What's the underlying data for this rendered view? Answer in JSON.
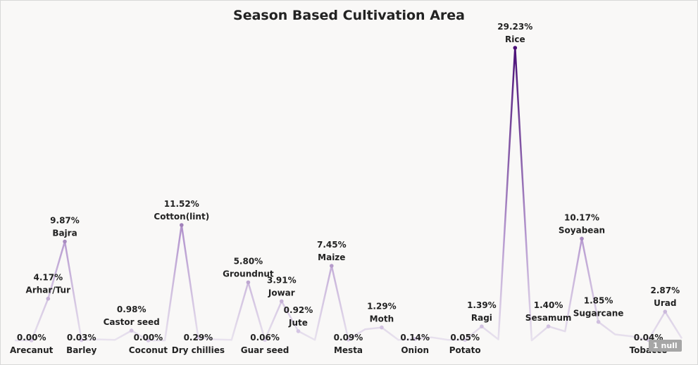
{
  "null_indicator": "1 null",
  "chart_data": {
    "type": "line",
    "title": "Season Based Cultivation Area",
    "xlabel": "",
    "ylabel": "",
    "ylim": [
      0,
      29.23
    ],
    "grid": false,
    "legend": "none",
    "color_low": "#e8e2ee",
    "color_high": "#4a0f77",
    "points": [
      {
        "category": "",
        "value": 0.0,
        "label": ""
      },
      {
        "category": "Arecanut",
        "value": 0.0,
        "label": "0.00%"
      },
      {
        "category": "Arhar/Tur",
        "value": 4.17,
        "label": "4.17%"
      },
      {
        "category": "Bajra",
        "value": 9.87,
        "label": "9.87%"
      },
      {
        "category": "Barley",
        "value": 0.03,
        "label": "0.03%"
      },
      {
        "category": "",
        "value": 0.1,
        "label": ""
      },
      {
        "category": "",
        "value": 0.05,
        "label": ""
      },
      {
        "category": "Castor seed",
        "value": 0.98,
        "label": "0.98%"
      },
      {
        "category": "Coconut",
        "value": 0.0,
        "label": "0.00%"
      },
      {
        "category": "",
        "value": 0.0,
        "label": ""
      },
      {
        "category": "Cotton(lint)",
        "value": 11.52,
        "label": "11.52%"
      },
      {
        "category": "Dry chillies",
        "value": 0.29,
        "label": "0.29%"
      },
      {
        "category": "",
        "value": 0.1,
        "label": ""
      },
      {
        "category": "",
        "value": 0.05,
        "label": ""
      },
      {
        "category": "Groundnut",
        "value": 5.8,
        "label": "5.80%"
      },
      {
        "category": "Guar seed",
        "value": 0.06,
        "label": "0.06%"
      },
      {
        "category": "Jowar",
        "value": 3.91,
        "label": "3.91%"
      },
      {
        "category": "Jute",
        "value": 0.92,
        "label": "0.92%"
      },
      {
        "category": "",
        "value": 0.05,
        "label": ""
      },
      {
        "category": "Maize",
        "value": 7.45,
        "label": "7.45%"
      },
      {
        "category": "Mesta",
        "value": 0.09,
        "label": "0.09%"
      },
      {
        "category": "",
        "value": 1.1,
        "label": ""
      },
      {
        "category": "Moth",
        "value": 1.29,
        "label": "1.29%"
      },
      {
        "category": "",
        "value": 0.05,
        "label": ""
      },
      {
        "category": "Onion",
        "value": 0.14,
        "label": "0.14%"
      },
      {
        "category": "",
        "value": 0.3,
        "label": ""
      },
      {
        "category": "",
        "value": 0.05,
        "label": ""
      },
      {
        "category": "Potato",
        "value": 0.05,
        "label": "0.05%"
      },
      {
        "category": "Ragi",
        "value": 1.39,
        "label": "1.39%"
      },
      {
        "category": "",
        "value": 0.1,
        "label": ""
      },
      {
        "category": "Rice",
        "value": 29.23,
        "label": "29.23%"
      },
      {
        "category": "",
        "value": 0.0,
        "label": ""
      },
      {
        "category": "Sesamum",
        "value": 1.4,
        "label": "1.40%"
      },
      {
        "category": "",
        "value": 0.9,
        "label": ""
      },
      {
        "category": "Soyabean",
        "value": 10.17,
        "label": "10.17%"
      },
      {
        "category": "Sugarcane",
        "value": 1.85,
        "label": "1.85%"
      },
      {
        "category": "",
        "value": 0.6,
        "label": ""
      },
      {
        "category": "",
        "value": 0.4,
        "label": ""
      },
      {
        "category": "Tobacco",
        "value": 0.04,
        "label": "0.04%"
      },
      {
        "category": "Urad",
        "value": 2.87,
        "label": "2.87%"
      },
      {
        "category": "",
        "value": 0.2,
        "label": ""
      }
    ]
  }
}
